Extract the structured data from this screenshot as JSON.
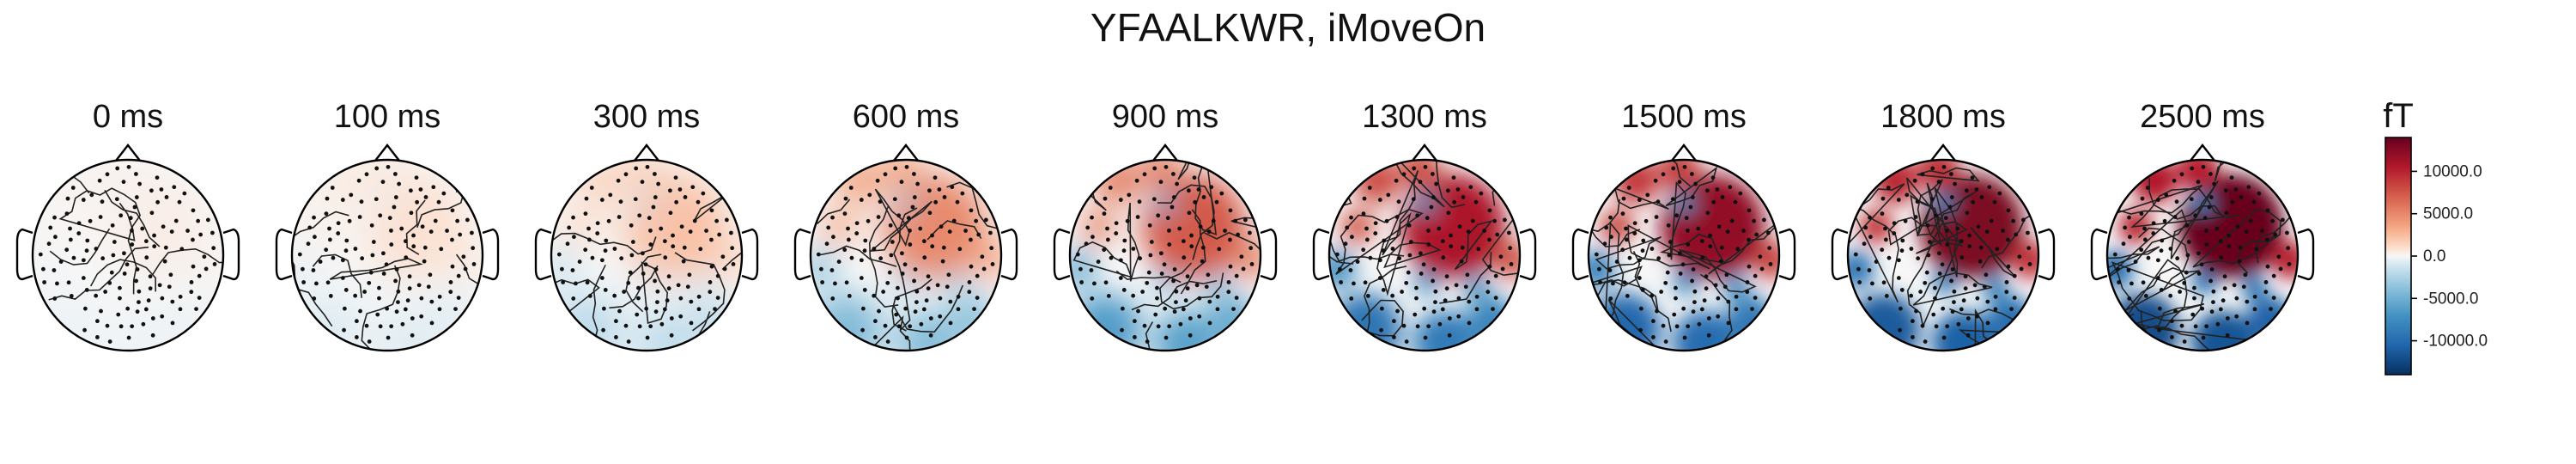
{
  "figure": {
    "title": "YFAALKWR, iMoveOn"
  },
  "chart_data": {
    "type": "heatmap",
    "title": "YFAALKWR, iMoveOn",
    "panels": [
      {
        "label": "0 ms",
        "time_ms": 0,
        "amplitude": 0.05
      },
      {
        "label": "100 ms",
        "time_ms": 100,
        "amplitude": 0.1
      },
      {
        "label": "300 ms",
        "time_ms": 300,
        "amplitude": 0.22
      },
      {
        "label": "600 ms",
        "time_ms": 600,
        "amplitude": 0.42
      },
      {
        "label": "900 ms",
        "time_ms": 900,
        "amplitude": 0.58
      },
      {
        "label": "1300 ms",
        "time_ms": 1300,
        "amplitude": 0.8
      },
      {
        "label": "1500 ms",
        "time_ms": 1500,
        "amplitude": 0.88
      },
      {
        "label": "1800 ms",
        "time_ms": 1800,
        "amplitude": 0.94
      },
      {
        "label": "2500 ms",
        "time_ms": 2500,
        "amplitude": 1.0
      }
    ],
    "colorbar": {
      "unit": "fT",
      "vmin": -14000,
      "vmax": 14000,
      "ticks": [
        10000,
        5000,
        0,
        -5000,
        -10000
      ],
      "tick_labels": [
        "10000.0",
        "5000.0",
        "0.0",
        "-5000.0",
        "-10000.0"
      ],
      "colormap": "RdBu_r"
    },
    "colors": {
      "positive": "#67001f",
      "neutral": "#f7f7f7",
      "negative": "#053061"
    }
  }
}
